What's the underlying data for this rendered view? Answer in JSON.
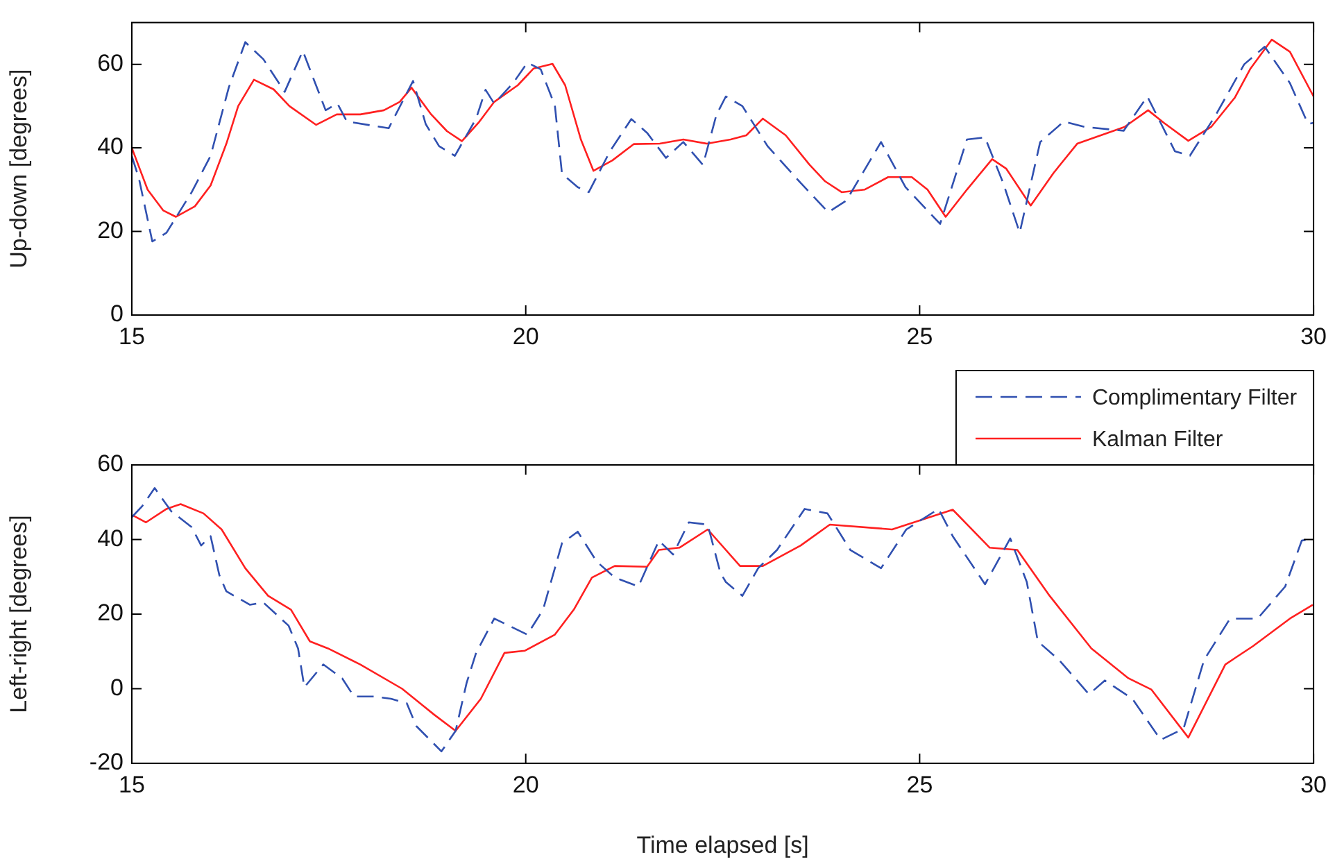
{
  "chart_data": [
    {
      "type": "line",
      "ylabel": "Up-down [degrees]",
      "xlim": [
        15,
        30
      ],
      "xticks": [
        15,
        20,
        25,
        30
      ],
      "ylim": [
        0,
        70
      ],
      "yticks": [
        0,
        20,
        40,
        60
      ],
      "grid": false,
      "legend": false,
      "marker": "none",
      "series": [
        {
          "color": "#3050b0",
          "line_style": "dashed",
          "x": [
            15.0,
            15.09,
            15.26,
            15.44,
            15.76,
            16.0,
            16.23,
            16.44,
            16.67,
            16.94,
            17.17,
            17.46,
            17.61,
            17.73,
            18.26,
            18.57,
            18.73,
            18.9,
            19.1,
            19.37,
            19.49,
            19.6,
            19.84,
            20.02,
            20.19,
            20.37,
            20.46,
            20.66,
            20.8,
            21.07,
            21.34,
            21.54,
            21.78,
            22.0,
            22.25,
            22.42,
            22.54,
            22.75,
            23.07,
            23.49,
            23.84,
            24.07,
            24.51,
            24.82,
            25.26,
            25.6,
            25.83,
            26.06,
            26.27,
            26.53,
            26.83,
            27.1,
            27.59,
            27.89,
            28.24,
            28.43,
            28.76,
            29.12,
            29.38,
            29.7,
            29.93,
            30.0
          ],
          "values": [
            38,
            32.7,
            17.6,
            19.7,
            29.4,
            38.1,
            54.4,
            65.3,
            61.2,
            53.4,
            63.2,
            49,
            50.6,
            46.3,
            44.7,
            56,
            45.7,
            40.4,
            38.1,
            47,
            53.9,
            50.6,
            55.5,
            60.4,
            58.8,
            50.1,
            33.8,
            30.6,
            29.4,
            39.2,
            46.9,
            43.6,
            37.6,
            41.4,
            35.9,
            47.9,
            52.3,
            50,
            40.4,
            31.6,
            24.6,
            27.4,
            41.4,
            30.6,
            21.8,
            42,
            42.5,
            31.6,
            19.7,
            41.4,
            46.3,
            45,
            44.1,
            52.3,
            39.2,
            38.1,
            47.9,
            60,
            64.2,
            55.5,
            45.7,
            46
          ]
        },
        {
          "color": "#ff2020",
          "line_style": "solid",
          "x": [
            15.0,
            15.2,
            15.4,
            15.56,
            15.8,
            16.0,
            16.2,
            16.35,
            16.55,
            16.8,
            17.0,
            17.34,
            17.6,
            17.9,
            18.2,
            18.4,
            18.55,
            18.8,
            19.0,
            19.19,
            19.4,
            19.6,
            19.9,
            20.1,
            20.34,
            20.5,
            20.7,
            20.86,
            21.1,
            21.37,
            21.7,
            22.0,
            22.3,
            22.6,
            22.8,
            23.01,
            23.3,
            23.6,
            23.8,
            24.01,
            24.3,
            24.6,
            24.9,
            25.1,
            25.33,
            25.6,
            25.92,
            26.1,
            26.41,
            26.7,
            27.0,
            27.3,
            27.6,
            27.9,
            28.1,
            28.41,
            28.7,
            29.0,
            29.2,
            29.47,
            29.7,
            30.0
          ],
          "values": [
            40,
            30,
            25,
            23.5,
            26,
            31,
            41,
            50,
            56.3,
            54,
            50,
            45.5,
            48,
            48,
            49,
            51,
            54.4,
            48,
            44,
            41.6,
            46,
            51,
            55,
            59,
            60.1,
            55,
            42,
            34.5,
            37,
            40.9,
            41,
            42,
            41,
            42,
            43,
            47,
            43,
            36,
            32,
            29.4,
            30,
            33,
            33,
            30,
            23.5,
            30,
            37.3,
            35,
            26.2,
            34,
            41,
            43,
            45,
            49,
            46,
            41.7,
            45,
            52,
            59,
            65.9,
            63,
            52.3
          ]
        }
      ]
    },
    {
      "type": "line",
      "ylabel": "Left-right [degrees]",
      "xlabel": "Time elapsed [s]",
      "xlim": [
        15,
        30
      ],
      "xticks": [
        15,
        20,
        25,
        30
      ],
      "ylim": [
        -20,
        60
      ],
      "yticks": [
        -20,
        0,
        20,
        40,
        60
      ],
      "grid": false,
      "legend": "top right",
      "marker": "none",
      "series": [
        {
          "name": "Complimentary Filter",
          "color": "#3050b0",
          "line_style": "dashed",
          "x": [
            15.0,
            15.13,
            15.29,
            15.5,
            15.76,
            15.88,
            16.0,
            16.11,
            16.2,
            16.5,
            16.67,
            16.99,
            17.11,
            17.19,
            17.43,
            17.67,
            17.82,
            18.08,
            18.29,
            18.49,
            18.61,
            18.93,
            19.11,
            19.25,
            19.37,
            19.6,
            20.02,
            20.22,
            20.46,
            20.66,
            20.9,
            21.13,
            21.43,
            21.69,
            21.87,
            22.07,
            22.31,
            22.47,
            22.54,
            22.75,
            22.95,
            23.19,
            23.54,
            23.83,
            24.12,
            24.51,
            24.83,
            25.24,
            25.42,
            25.83,
            26.15,
            26.36,
            26.5,
            26.77,
            27.15,
            27.35,
            27.7,
            28.06,
            28.35,
            28.61,
            28.94,
            29.29,
            29.64,
            29.85,
            29.99
          ],
          "values": [
            46,
            48.9,
            53.8,
            47.6,
            43.3,
            38.4,
            40.9,
            30.5,
            26.1,
            22.5,
            23.1,
            16.9,
            10.8,
            0.4,
            6.5,
            2.8,
            -2.1,
            -2.1,
            -2.7,
            -3.9,
            -10,
            -16.8,
            -11.3,
            1.6,
            9.6,
            18.8,
            14.5,
            21.2,
            39,
            42.1,
            34.1,
            29.8,
            27.4,
            39.7,
            36,
            44.6,
            44,
            31.1,
            28.6,
            24.9,
            32.3,
            37.2,
            48.2,
            47,
            37.2,
            32.3,
            42.7,
            48.2,
            40.9,
            28,
            40.3,
            28.6,
            12.7,
            7.7,
            -1.5,
            2.2,
            -2.7,
            -13.7,
            -10.7,
            7.7,
            18.8,
            18.8,
            27.4,
            39.7,
            40.3
          ]
        },
        {
          "name": "Kalman Filter",
          "color": "#ff2020",
          "line_style": "solid",
          "x": [
            15.02,
            15.18,
            15.44,
            15.62,
            15.91,
            16.14,
            16.44,
            16.73,
            17.02,
            17.26,
            17.49,
            17.9,
            18.43,
            18.84,
            19.11,
            19.43,
            19.73,
            19.99,
            20.37,
            20.61,
            20.84,
            21.13,
            21.54,
            21.69,
            21.95,
            22.31,
            22.72,
            23.01,
            23.49,
            23.86,
            24.65,
            25.42,
            25.89,
            26.24,
            26.65,
            27.18,
            27.65,
            27.94,
            28.41,
            28.88,
            29.23,
            29.7,
            29.99
          ],
          "values": [
            46.4,
            44.6,
            48.2,
            49.5,
            47,
            42.7,
            32.3,
            24.9,
            21.2,
            12.7,
            10.8,
            6.5,
            0,
            -7,
            -11.3,
            -2.7,
            9.6,
            10.2,
            14.5,
            21.2,
            29.8,
            32.9,
            32.7,
            37.2,
            37.8,
            42.7,
            32.9,
            32.9,
            38.4,
            44,
            42.7,
            48,
            37.8,
            37.2,
            24.9,
            10.8,
            2.8,
            -0.2,
            -13.1,
            6.5,
            11.4,
            18.8,
            22.5
          ]
        }
      ]
    }
  ]
}
